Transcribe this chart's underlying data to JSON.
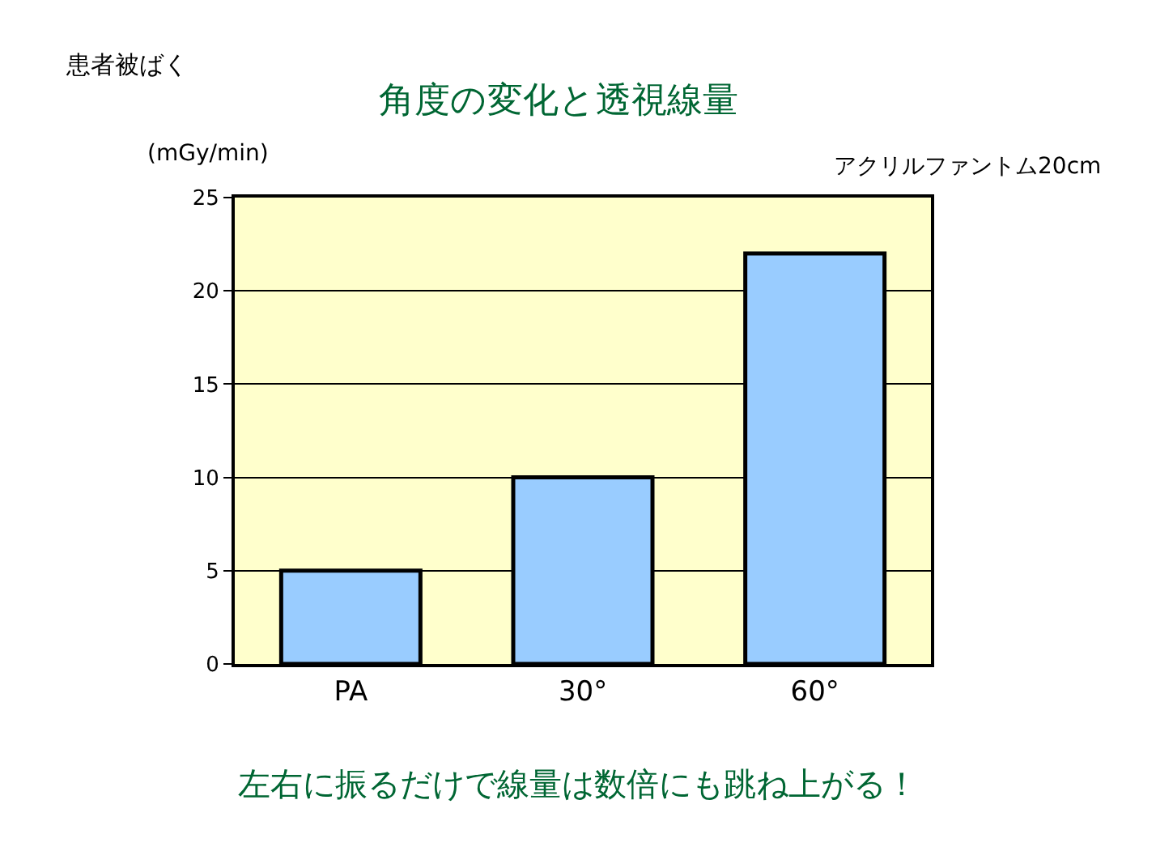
{
  "chart_data": {
    "type": "bar",
    "title": "角度の変化と透視線量",
    "subtitle": "患者被ばく",
    "ylabel": "(mGy/min)",
    "categories": [
      "PA",
      "30°",
      "60°"
    ],
    "values": [
      5,
      10,
      22
    ],
    "color": "#99ccff",
    "ylim": [
      0,
      25
    ],
    "yticks": [
      0,
      5,
      10,
      15,
      20,
      25
    ],
    "grid": "y",
    "annotations": [
      "アクリルファントム20cm",
      "左右に振るだけで線量は数倍にも跳ね上がる！"
    ]
  }
}
